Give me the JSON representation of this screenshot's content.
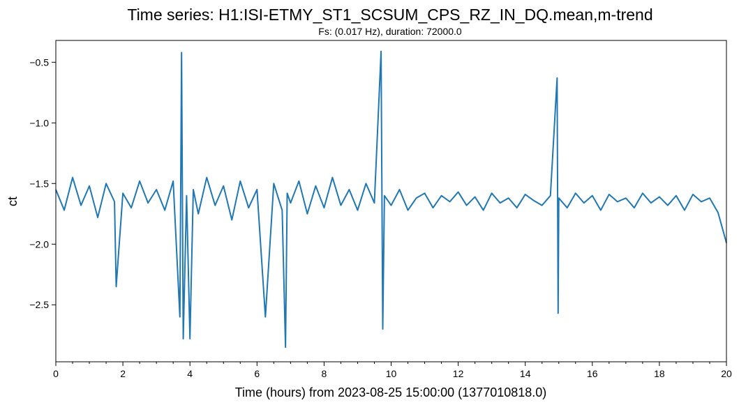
{
  "chart_data": {
    "type": "line",
    "title": "Time series: H1:ISI-ETMY_ST1_SCSUM_CPS_RZ_IN_DQ.mean,m-trend",
    "subtitle": "Fs: (0.017 Hz), duration: 72000.0",
    "xlabel": "Time (hours) from 2023-08-25 15:00:00 (1377010818.0)",
    "ylabel": "ct",
    "xlim": [
      0,
      20
    ],
    "ylim": [
      -2.97,
      -0.32
    ],
    "x_ticks": [
      0,
      2,
      4,
      6,
      8,
      10,
      12,
      14,
      16,
      18,
      20
    ],
    "x_tick_labels": [
      "0",
      "2",
      "4",
      "6",
      "8",
      "10",
      "12",
      "14",
      "16",
      "18",
      "20"
    ],
    "y_ticks": [
      -2.5,
      -2.0,
      -1.5,
      -1.0,
      -0.5
    ],
    "y_tick_labels": [
      "−2.5",
      "−2.0",
      "−1.5",
      "−1.0",
      "−0.5"
    ],
    "grid": false,
    "line_color": "#1f77b4",
    "series": [
      {
        "x": [
          0.0,
          0.25,
          0.5,
          0.75,
          1.0,
          1.25,
          1.5,
          1.75,
          1.8,
          2.0,
          2.25,
          2.5,
          2.75,
          3.0,
          3.25,
          3.5,
          3.7,
          3.75,
          3.8,
          3.9,
          4.0,
          4.1,
          4.25,
          4.5,
          4.75,
          5.0,
          5.25,
          5.5,
          5.75,
          6.0,
          6.25,
          6.5,
          6.75,
          6.85,
          6.9,
          7.0,
          7.25,
          7.5,
          7.75,
          8.0,
          8.25,
          8.5,
          8.75,
          9.0,
          9.25,
          9.5,
          9.7,
          9.75,
          9.8,
          10.0,
          10.25,
          10.5,
          10.75,
          11.0,
          11.25,
          11.5,
          11.75,
          12.0,
          12.25,
          12.5,
          12.75,
          13.0,
          13.25,
          13.5,
          13.75,
          14.0,
          14.25,
          14.5,
          14.75,
          14.95,
          14.98,
          15.0,
          15.25,
          15.5,
          15.75,
          16.0,
          16.25,
          16.5,
          16.75,
          17.0,
          17.25,
          17.5,
          17.75,
          18.0,
          18.25,
          18.5,
          18.75,
          19.0,
          19.25,
          19.5,
          19.75,
          20.0
        ],
        "y": [
          -1.55,
          -1.72,
          -1.45,
          -1.68,
          -1.52,
          -1.78,
          -1.5,
          -1.65,
          -2.35,
          -1.58,
          -1.7,
          -1.48,
          -1.66,
          -1.55,
          -1.72,
          -1.48,
          -2.6,
          -0.42,
          -2.78,
          -1.6,
          -2.78,
          -1.55,
          -1.75,
          -1.45,
          -1.68,
          -1.52,
          -1.8,
          -1.48,
          -1.7,
          -1.55,
          -2.6,
          -1.5,
          -1.72,
          -2.85,
          -1.58,
          -1.66,
          -1.48,
          -1.75,
          -1.52,
          -1.7,
          -1.45,
          -1.68,
          -1.55,
          -1.72,
          -1.5,
          -1.66,
          -0.41,
          -2.7,
          -1.6,
          -1.68,
          -1.55,
          -1.72,
          -1.62,
          -1.58,
          -1.7,
          -1.6,
          -1.65,
          -1.57,
          -1.68,
          -1.61,
          -1.72,
          -1.58,
          -1.66,
          -1.62,
          -1.7,
          -1.59,
          -1.64,
          -1.68,
          -1.6,
          -0.63,
          -2.57,
          -1.62,
          -1.7,
          -1.58,
          -1.66,
          -1.6,
          -1.72,
          -1.59,
          -1.65,
          -1.62,
          -1.7,
          -1.58,
          -1.66,
          -1.61,
          -1.68,
          -1.6,
          -1.72,
          -1.59,
          -1.65,
          -1.62,
          -1.74,
          -1.99
        ]
      }
    ]
  }
}
